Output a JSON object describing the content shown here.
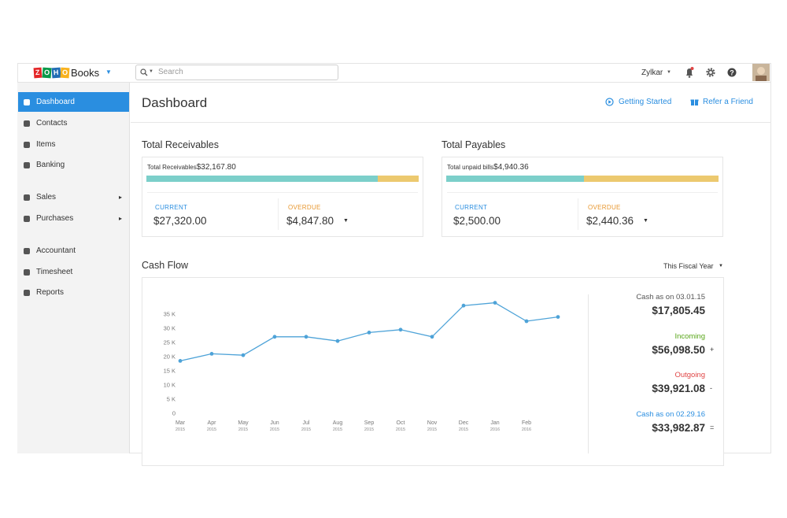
{
  "topbar": {
    "brand": "ZOHO",
    "product": "Books",
    "search_placeholder": "Search",
    "user": "Zylkar"
  },
  "sidebar": {
    "groups": [
      [
        {
          "label": "Dashboard",
          "active": true
        },
        {
          "label": "Contacts"
        },
        {
          "label": "Items"
        },
        {
          "label": "Banking"
        }
      ],
      [
        {
          "label": "Sales",
          "arrow": true
        },
        {
          "label": "Purchases",
          "arrow": true
        }
      ],
      [
        {
          "label": "Accountant"
        },
        {
          "label": "Timesheet"
        },
        {
          "label": "Reports"
        }
      ]
    ]
  },
  "header": {
    "title": "Dashboard",
    "links": [
      "Getting Started",
      "Refer a Friend"
    ]
  },
  "receivables": {
    "title": "Total Receivables",
    "total_label": "Total Receivables",
    "total": "$32,167.80",
    "current_label": "CURRENT",
    "current": "$27,320.00",
    "overdue_label": "OVERDUE",
    "overdue": "$4,847.80"
  },
  "payables": {
    "title": "Total Payables",
    "total_label": "Total unpaid bills",
    "total": "$4,940.36",
    "current_label": "CURRENT",
    "current": "$2,500.00",
    "overdue_label": "OVERDUE",
    "overdue": "$2,440.36"
  },
  "cash_flow": {
    "title": "Cash Flow",
    "period": "This Fiscal Year",
    "summary": [
      {
        "label": "Cash as on 03.01.15",
        "value": "$17,805.45",
        "color": "#555555"
      },
      {
        "label": "Incoming",
        "value": "$56,098.50",
        "operator": "+",
        "color": "#58a618"
      },
      {
        "label": "Outgoing",
        "value": "$39,921.08",
        "operator": "-",
        "color": "#e04545"
      },
      {
        "label": "Cash as on 02.29.16",
        "value": "$33,982.87",
        "operator": "=",
        "color": "#2a8ee0"
      }
    ]
  },
  "chart_data": {
    "type": "line",
    "categories": [
      "Mar",
      "Apr",
      "May",
      "Jun",
      "Jul",
      "Aug",
      "Sep",
      "Oct",
      "Nov",
      "Dec",
      "Jan",
      "Feb",
      null
    ],
    "category_years": [
      "2015",
      "2015",
      "2015",
      "2015",
      "2015",
      "2015",
      "2015",
      "2015",
      "2015",
      "2015",
      "2016",
      "2016",
      null
    ],
    "values": [
      18500,
      21000,
      20500,
      27000,
      27000,
      25500,
      28500,
      29500,
      27000,
      38000,
      39000,
      32500,
      34000
    ],
    "color": "#4ea3d8",
    "ylim": [
      0,
      35000
    ],
    "yticks": [
      0,
      {
        "value": 5000,
        "label": "5 K"
      },
      {
        "value": 10000,
        "label": "10 K"
      },
      {
        "value": 15000,
        "label": "15 K"
      },
      {
        "value": 20000,
        "label": "20 K"
      },
      {
        "value": 25000,
        "label": "25 K"
      },
      {
        "value": 30000,
        "label": "30 K"
      },
      {
        "value": 35000,
        "label": "35 K"
      }
    ],
    "grid": false
  }
}
